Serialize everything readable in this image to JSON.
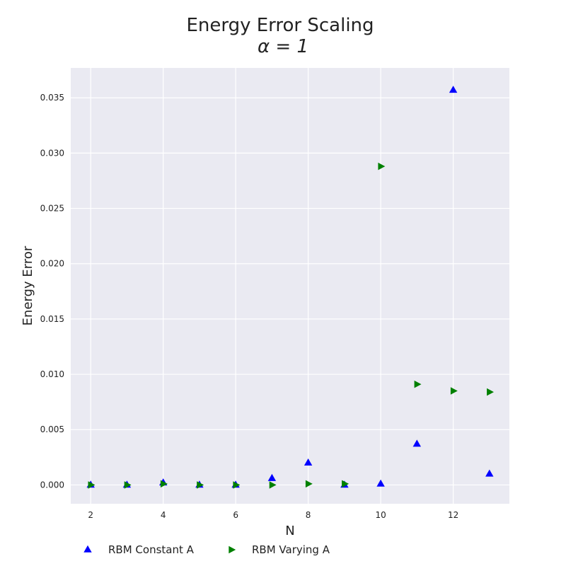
{
  "chart_data": {
    "type": "scatter",
    "title": "Energy Error Scaling",
    "subtitle": "α = 1",
    "xlabel": "N",
    "ylabel": "Energy Error",
    "xlim": [
      1.45,
      13.55
    ],
    "ylim": [
      -0.0017,
      0.0377
    ],
    "xticks": [
      2,
      4,
      6,
      8,
      10,
      12
    ],
    "xtick_labels": [
      "2",
      "4",
      "6",
      "8",
      "10",
      "12"
    ],
    "yticks": [
      0.0,
      0.005,
      0.01,
      0.015,
      0.02,
      0.025,
      0.03,
      0.035
    ],
    "ytick_labels": [
      "0.000",
      "0.005",
      "0.010",
      "0.015",
      "0.020",
      "0.025",
      "0.030",
      "0.035"
    ],
    "grid": true,
    "legend_position": "bottom",
    "background_color": "#eaeaf2",
    "grid_color": "#ffffff",
    "series": [
      {
        "name": "RBM Constant A",
        "marker": "triangle-up",
        "color": "#0000ff",
        "x": [
          2,
          3,
          4,
          5,
          6,
          7,
          8,
          9,
          10,
          11,
          12,
          13
        ],
        "y": [
          0.0,
          0.0,
          0.0002,
          0.0,
          0.0,
          0.0006,
          0.002,
          0.0,
          0.0001,
          0.0037,
          0.0357,
          0.001
        ]
      },
      {
        "name": "RBM Varying A",
        "marker": "triangle-right",
        "color": "#008000",
        "x": [
          2,
          3,
          4,
          5,
          6,
          7,
          8,
          9,
          10,
          11,
          12,
          13
        ],
        "y": [
          0.0,
          0.0,
          0.0001,
          0.0,
          0.0,
          0.0,
          0.0001,
          0.0001,
          0.0288,
          0.0091,
          0.0085,
          0.0084
        ]
      }
    ]
  }
}
